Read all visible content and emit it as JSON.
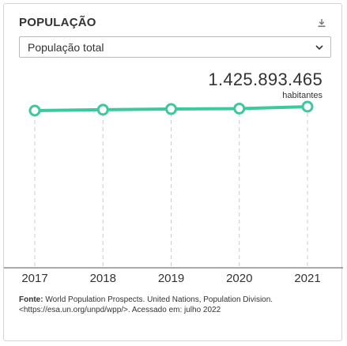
{
  "widget": {
    "title": "POPULAÇÃO",
    "download_icon": "download-icon",
    "select": {
      "value": "População total",
      "icon": "chevron-down-icon"
    },
    "highlight": {
      "value": "1.425.893.465",
      "unit": "habitantes"
    },
    "source": {
      "label": "Fonte:",
      "text": "World Population Prospects. United Nations, Population Division. <https://esa.un.org/unpd/wpp/>. Acessado em: julho 2022"
    }
  },
  "colors": {
    "line": "#3fc79d",
    "grid": "#cccccc",
    "axis": "#555555"
  },
  "chart_data": {
    "type": "line",
    "categories": [
      "2017",
      "2018",
      "2019",
      "2020",
      "2021"
    ],
    "series": [
      {
        "values": [
          1396215000,
          1402760000,
          1407745000,
          1411100000,
          1425893465
        ]
      }
    ],
    "grid": "vertical-dashed"
  }
}
